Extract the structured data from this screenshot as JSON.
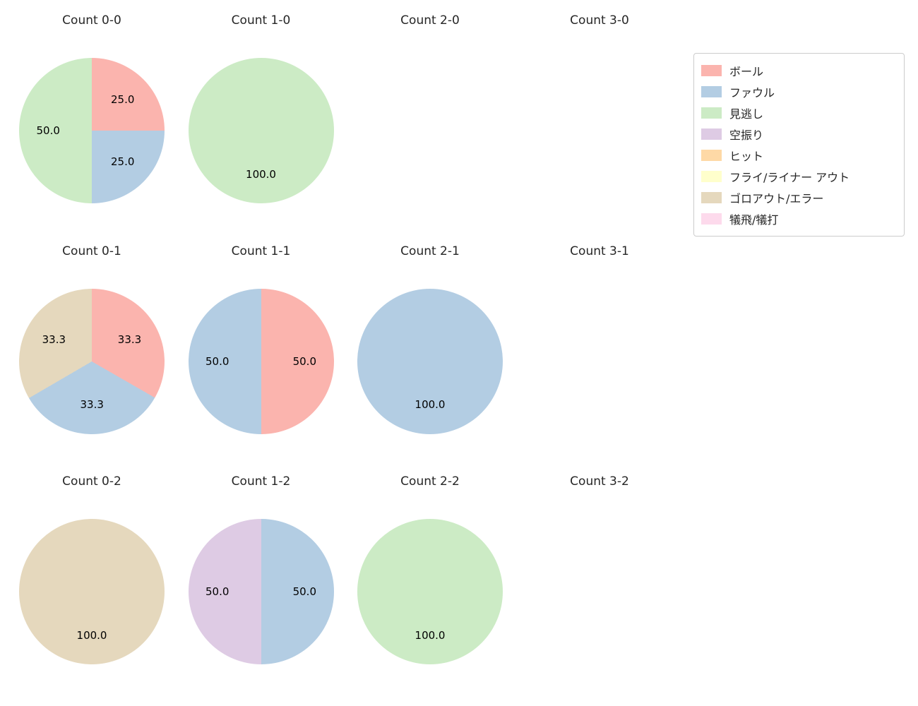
{
  "figure": {
    "background": "#ffffff"
  },
  "legend": {
    "position": "upper right",
    "items": [
      {
        "label": "ボール",
        "color": "#fbb4ae"
      },
      {
        "label": "ファウル",
        "color": "#b3cde3"
      },
      {
        "label": "見逃し",
        "color": "#ccebc5"
      },
      {
        "label": "空振り",
        "color": "#decbe4"
      },
      {
        "label": "ヒット",
        "color": "#fed9a6"
      },
      {
        "label": "フライ/ライナー アウト",
        "color": "#ffffcc"
      },
      {
        "label": "ゴロアウト/エラー",
        "color": "#e5d8bd"
      },
      {
        "label": "犠飛/犠打",
        "color": "#fddaec"
      }
    ]
  },
  "chart_data": {
    "type": "pie",
    "layout": {
      "rows": 3,
      "cols": 4,
      "start_angle_deg": 90,
      "direction": "clockwise",
      "label_distance": 0.6,
      "grid": false
    },
    "charts": [
      {
        "title": "Count 0-0",
        "slices": [
          {
            "label": "ボール",
            "pct": 25.0,
            "pct_text": "25.0",
            "color": "#fbb4ae"
          },
          {
            "label": "ファウル",
            "pct": 25.0,
            "pct_text": "25.0",
            "color": "#b3cde3"
          },
          {
            "label": "見逃し",
            "pct": 50.0,
            "pct_text": "50.0",
            "color": "#ccebc5"
          }
        ]
      },
      {
        "title": "Count 1-0",
        "slices": [
          {
            "label": "見逃し",
            "pct": 100.0,
            "pct_text": "100.0",
            "color": "#ccebc5"
          }
        ]
      },
      {
        "title": "Count 2-0",
        "slices": []
      },
      {
        "title": "Count 3-0",
        "slices": []
      },
      {
        "title": "Count 0-1",
        "slices": [
          {
            "label": "ボール",
            "pct": 33.3,
            "pct_text": "33.3",
            "color": "#fbb4ae"
          },
          {
            "label": "ファウル",
            "pct": 33.3,
            "pct_text": "33.3",
            "color": "#b3cde3"
          },
          {
            "label": "ゴロアウト/エラー",
            "pct": 33.3,
            "pct_text": "33.3",
            "color": "#e5d8bd"
          }
        ]
      },
      {
        "title": "Count 1-1",
        "slices": [
          {
            "label": "ボール",
            "pct": 50.0,
            "pct_text": "50.0",
            "color": "#fbb4ae"
          },
          {
            "label": "ファウル",
            "pct": 50.0,
            "pct_text": "50.0",
            "color": "#b3cde3"
          }
        ]
      },
      {
        "title": "Count 2-1",
        "slices": [
          {
            "label": "ファウル",
            "pct": 100.0,
            "pct_text": "100.0",
            "color": "#b3cde3"
          }
        ]
      },
      {
        "title": "Count 3-1",
        "slices": []
      },
      {
        "title": "Count 0-2",
        "slices": [
          {
            "label": "ゴロアウト/エラー",
            "pct": 100.0,
            "pct_text": "100.0",
            "color": "#e5d8bd"
          }
        ]
      },
      {
        "title": "Count 1-2",
        "slices": [
          {
            "label": "ファウル",
            "pct": 50.0,
            "pct_text": "50.0",
            "color": "#b3cde3"
          },
          {
            "label": "空振り",
            "pct": 50.0,
            "pct_text": "50.0",
            "color": "#decbe4"
          }
        ]
      },
      {
        "title": "Count 2-2",
        "slices": [
          {
            "label": "見逃し",
            "pct": 100.0,
            "pct_text": "100.0",
            "color": "#ccebc5"
          }
        ]
      },
      {
        "title": "Count 3-2",
        "slices": []
      }
    ]
  }
}
